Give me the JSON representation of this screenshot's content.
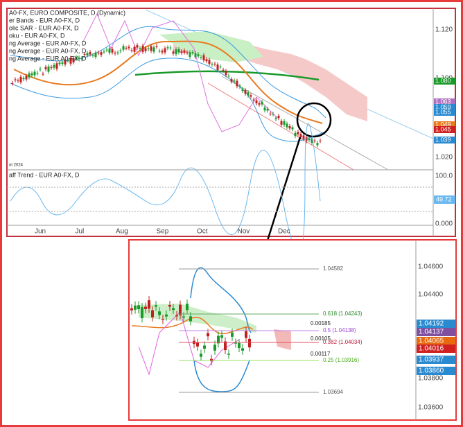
{
  "main_chart": {
    "legend": [
      "A0-FX, EURO COMPOSITE, D (Dynamic)",
      "er Bands - EUR A0-FX, D",
      "olic SAR - EUR A0-FX, D",
      "oku - EUR A0-FX, D",
      "ng Average - EUR A0-FX, D",
      "ng Average - EUR A0-FX, D",
      "ng Average - EUR A0-FX, D"
    ],
    "price_axis": [
      "1.120",
      "1.100",
      "1.020"
    ],
    "price_badges": [
      "1.080",
      "1.063",
      "1.059",
      "1.055",
      "1.049",
      "1.045",
      "1.039"
    ],
    "date_note": "ot 2024",
    "months": [
      "Jun",
      "Jul",
      "Aug",
      "Sep",
      "Oct",
      "Nov",
      "Dec"
    ]
  },
  "indicator": {
    "title": "aff Trend - EUR A0-FX, D",
    "axis": [
      "100.0",
      "0.000"
    ],
    "badge": "49.72"
  },
  "zoom_chart": {
    "price_axis": [
      "1.04600",
      "1.04400",
      "1.03800",
      "1.03600"
    ],
    "price_badges": [
      "1.04192",
      "1.04137",
      "1.04065",
      "1.04016",
      "1.03937",
      "1.03860"
    ],
    "fib_levels": [
      "1.04582",
      "0.618 (1.04243)",
      "0.5 (1.04138)",
      "0.382 (1.04034)",
      "0.25 (1.03916)",
      "1.03694"
    ],
    "spreads": [
      "0.00185",
      "0.00105",
      "0.00117"
    ]
  }
}
